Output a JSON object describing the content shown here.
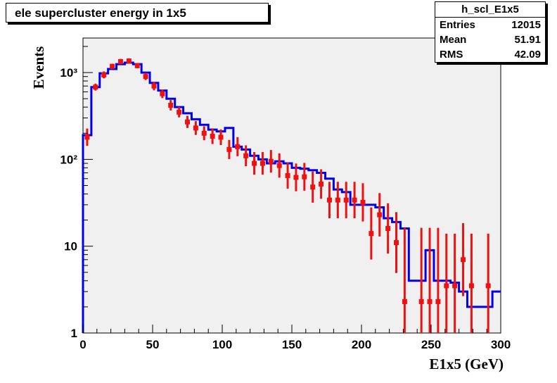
{
  "title": "ele supercluster energy in 1x5",
  "stats_box": {
    "name": "h_scl_E1x5",
    "rows": [
      {
        "label": "Entries",
        "value": "12015"
      },
      {
        "label": "Mean",
        "value": "51.91"
      },
      {
        "label": "RMS",
        "value": "42.09"
      }
    ]
  },
  "colors": {
    "histogram": "#0000ee",
    "points": "#ee1111",
    "frame_bg": "#f0f0f0"
  },
  "chart_data": {
    "type": "line",
    "title": "ele supercluster energy in 1x5",
    "xlabel": "E1x5 (GeV)",
    "ylabel": "Events",
    "xlim": [
      0,
      300
    ],
    "ylim": [
      1,
      2500
    ],
    "yscale": "log",
    "grid": false,
    "x_ticks": [
      "0",
      "50",
      "100",
      "150",
      "200",
      "250",
      "300"
    ],
    "y_ticks": [
      {
        "value": 1,
        "label": "1"
      },
      {
        "value": 10,
        "label": "10"
      },
      {
        "value": 100,
        "label": "10²"
      },
      {
        "value": 1000,
        "label": "10³"
      }
    ],
    "series": [
      {
        "style": "step",
        "bin_edges": [
          0,
          6,
          12,
          18,
          24,
          30,
          36,
          42,
          48,
          54,
          60,
          66,
          72,
          78,
          84,
          90,
          96,
          102,
          108,
          114,
          120,
          126,
          132,
          138,
          144,
          150,
          156,
          162,
          168,
          174,
          180,
          186,
          192,
          198,
          204,
          210,
          216,
          222,
          228,
          234,
          240,
          246,
          252,
          258,
          264,
          270,
          276,
          282,
          288,
          294,
          300
        ],
        "values": [
          190,
          680,
          980,
          1100,
          1250,
          1300,
          1250,
          1000,
          760,
          620,
          500,
          400,
          340,
          290,
          250,
          220,
          210,
          230,
          140,
          130,
          110,
          100,
          90,
          95,
          90,
          80,
          78,
          75,
          70,
          60,
          45,
          42,
          30,
          30,
          30,
          28,
          21,
          19,
          16,
          4,
          4,
          9,
          4,
          4,
          3.8,
          3,
          2,
          2,
          2,
          3
        ]
      },
      {
        "style": "points",
        "x": [
          3,
          9,
          15,
          21,
          27,
          33,
          39,
          45,
          51,
          57,
          63,
          69,
          75,
          81,
          87,
          93,
          99,
          105,
          111,
          117,
          123,
          129,
          135,
          141,
          147,
          153,
          159,
          165,
          171,
          177,
          183,
          189,
          195,
          201,
          207,
          213,
          219,
          225,
          231,
          243,
          249,
          255,
          261,
          267,
          273,
          279,
          291
        ],
        "y": [
          180,
          680,
          940,
          1180,
          1340,
          1360,
          1200,
          900,
          700,
          570,
          420,
          350,
          270,
          230,
          200,
          185,
          180,
          130,
          140,
          110,
          90,
          90,
          95,
          85,
          65,
          62,
          63,
          48,
          52,
          34,
          34,
          34,
          34,
          32,
          14,
          23,
          16,
          11,
          2.3,
          2.3,
          2.3,
          2.3,
          3.5,
          3.5,
          7,
          3.5,
          3.5
        ],
        "err": [
          0.1,
          0.04,
          0.04,
          0.03,
          0.03,
          0.03,
          0.03,
          0.04,
          0.05,
          0.05,
          0.06,
          0.06,
          0.07,
          0.08,
          0.08,
          0.09,
          0.09,
          0.11,
          0.11,
          0.12,
          0.13,
          0.13,
          0.13,
          0.14,
          0.15,
          0.16,
          0.16,
          0.18,
          0.17,
          0.21,
          0.21,
          0.21,
          0.21,
          0.22,
          0.3,
          0.25,
          0.29,
          0.35,
          0.85,
          0.85,
          0.85,
          0.85,
          0.6,
          0.6,
          0.42,
          0.6,
          0.6
        ]
      }
    ]
  }
}
